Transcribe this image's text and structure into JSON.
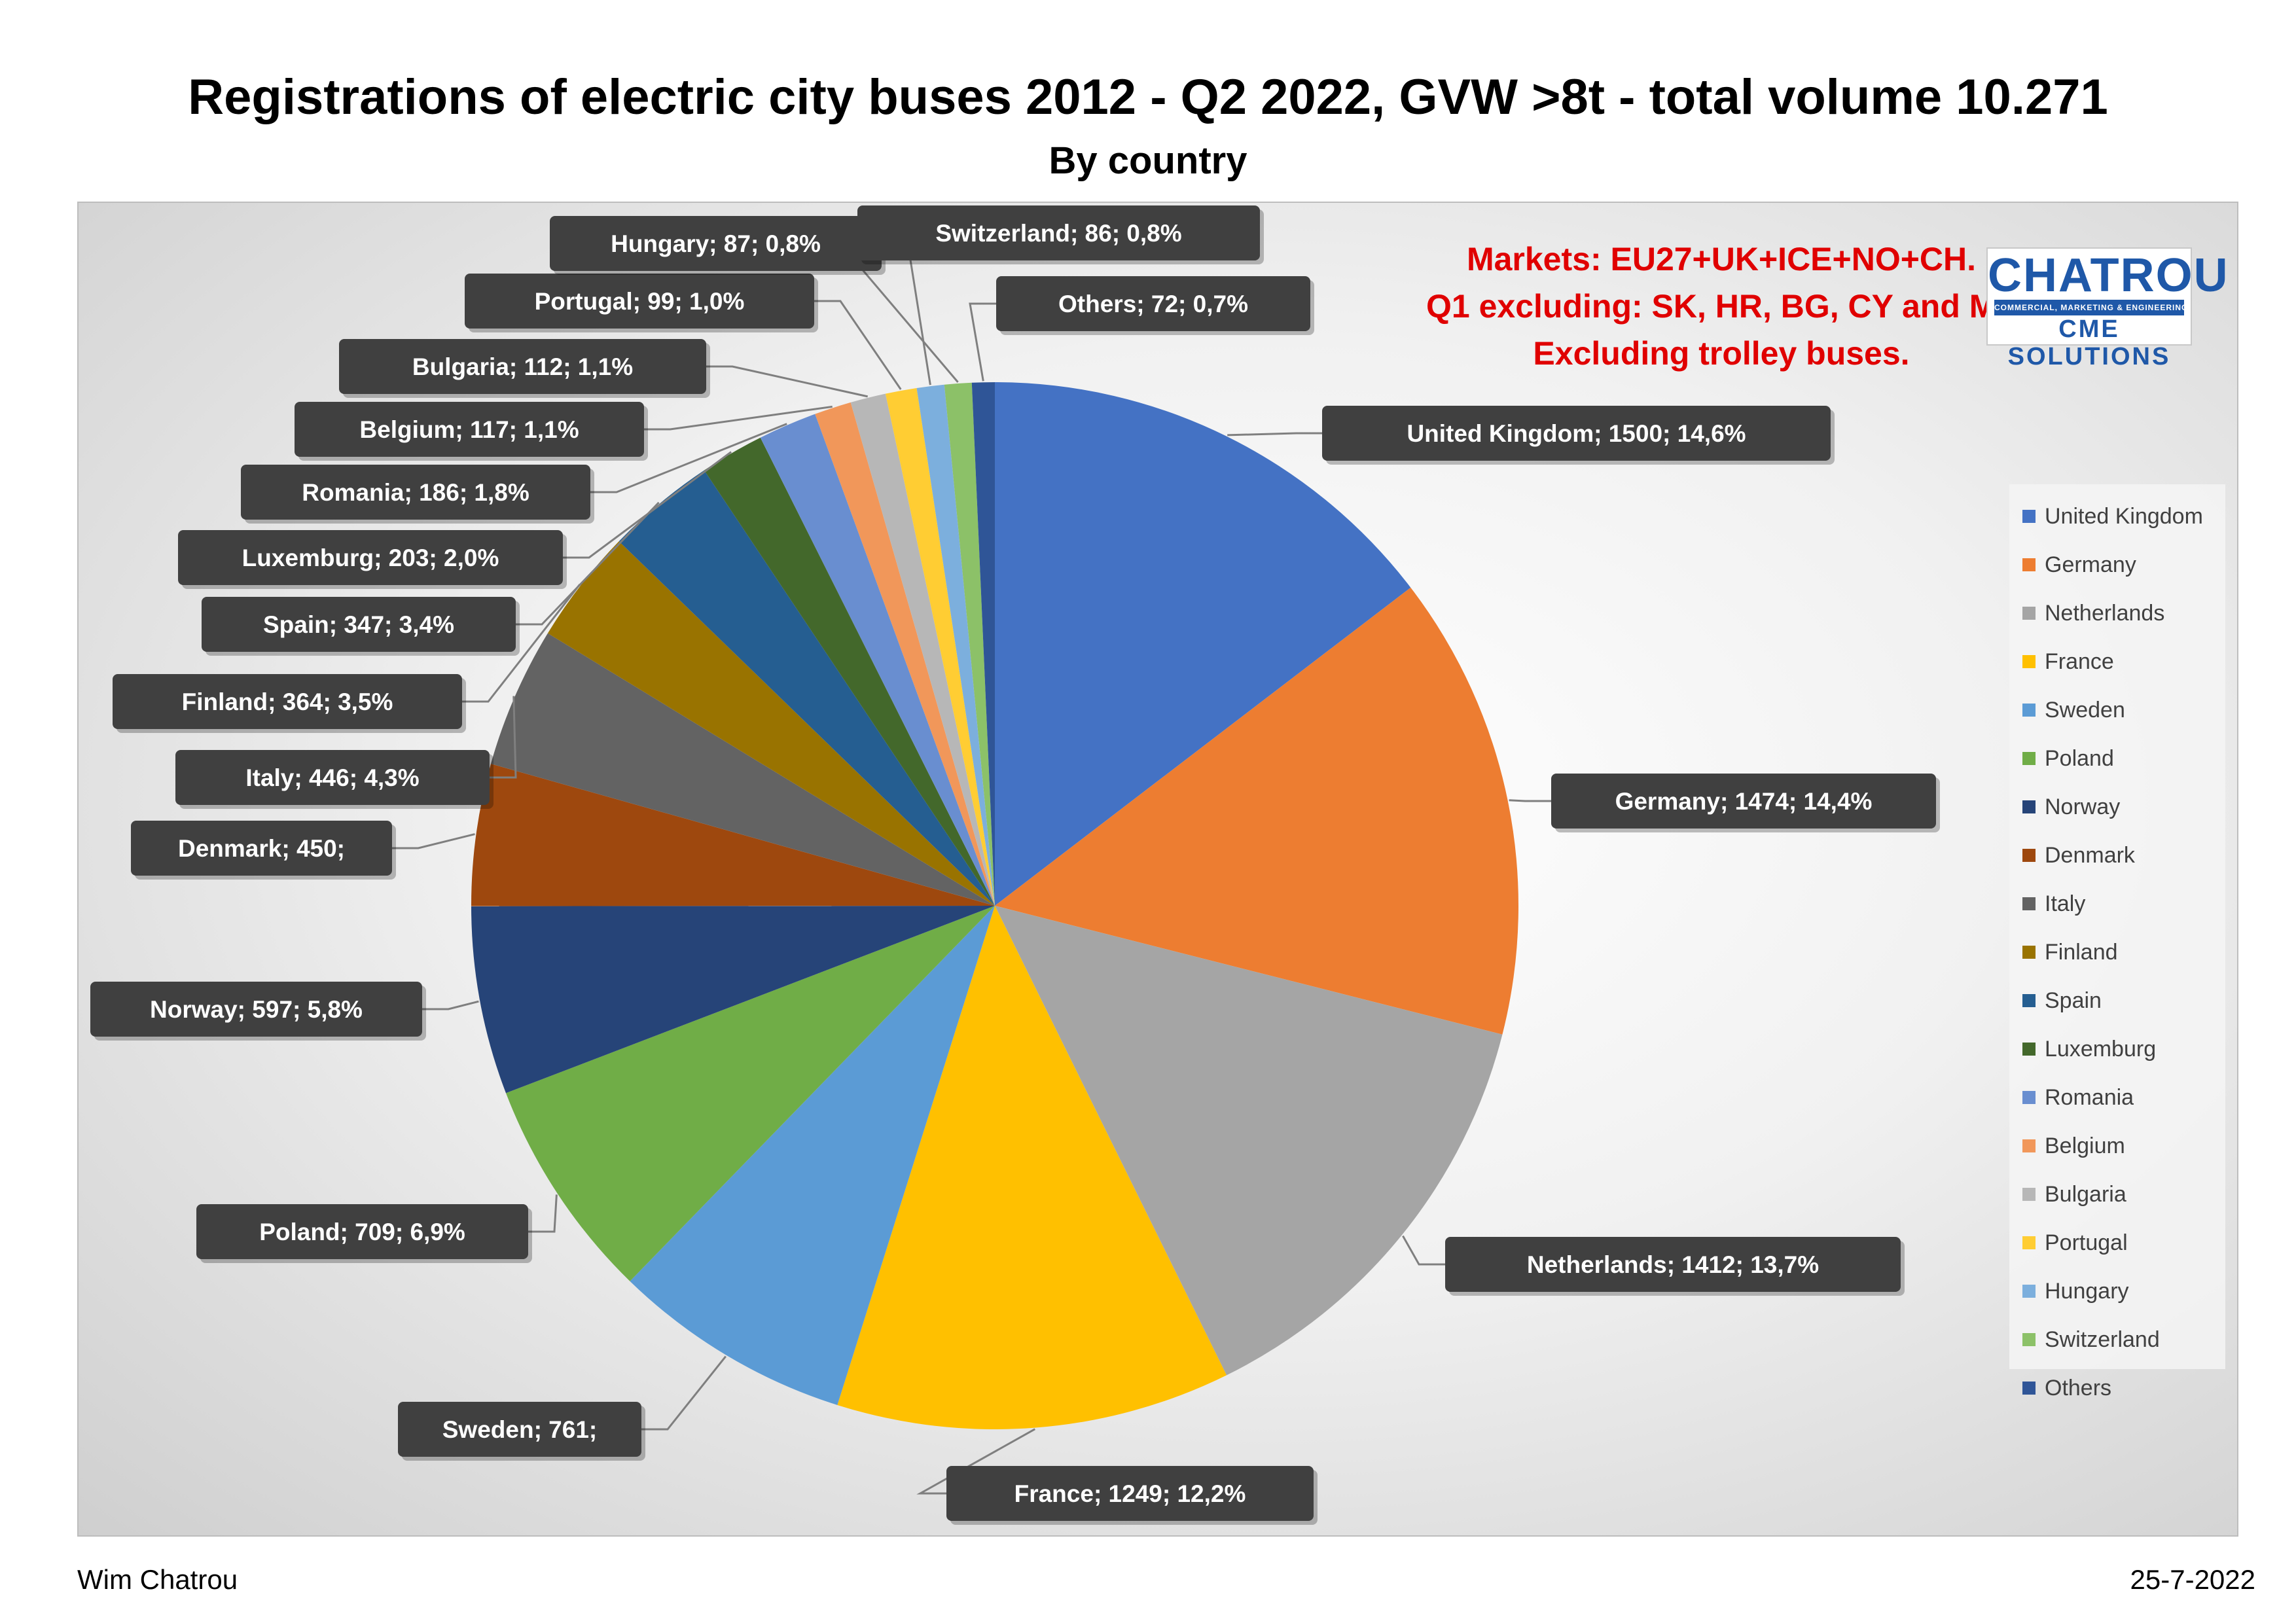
{
  "chart_data": {
    "type": "pie",
    "title": "Registrations of electric city buses 2012 - Q2 2022, GVW >8t - total volume 10.271",
    "subtitle": "By country",
    "slices": [
      {
        "label": "United Kingdom",
        "value": 1500,
        "data_label": "United Kingdom; 1500; 14,6%",
        "color": "#4472C4"
      },
      {
        "label": "Germany",
        "value": 1474,
        "data_label": "Germany; 1474; 14,4%",
        "color": "#ED7D31"
      },
      {
        "label": "Netherlands",
        "value": 1412,
        "data_label": "Netherlands; 1412; 13,7%",
        "color": "#A5A5A5"
      },
      {
        "label": "France",
        "value": 1249,
        "data_label": "France; 1249; 12,2%",
        "color": "#FFC000"
      },
      {
        "label": "Sweden",
        "value": 761,
        "data_label": "Sweden; 761;",
        "color": "#5B9BD5"
      },
      {
        "label": "Poland",
        "value": 709,
        "data_label": "Poland; 709; 6,9%",
        "color": "#70AD47"
      },
      {
        "label": "Norway",
        "value": 597,
        "data_label": "Norway; 597; 5,8%",
        "color": "#264478"
      },
      {
        "label": "Denmark",
        "value": 450,
        "data_label": "Denmark; 450;",
        "color": "#9E480E"
      },
      {
        "label": "Italy",
        "value": 446,
        "data_label": "Italy; 446; 4,3%",
        "color": "#636363"
      },
      {
        "label": "Finland",
        "value": 364,
        "data_label": "Finland; 364; 3,5%",
        "color": "#997300"
      },
      {
        "label": "Spain",
        "value": 347,
        "data_label": "Spain; 347; 3,4%",
        "color": "#255E91"
      },
      {
        "label": "Luxemburg",
        "value": 203,
        "data_label": "Luxemburg; 203; 2,0%",
        "color": "#43682B"
      },
      {
        "label": "Romania",
        "value": 186,
        "data_label": "Romania; 186; 1,8%",
        "color": "#698ED0"
      },
      {
        "label": "Belgium",
        "value": 117,
        "data_label": "Belgium; 117; 1,1%",
        "color": "#F1975A"
      },
      {
        "label": "Bulgaria",
        "value": 112,
        "data_label": "Bulgaria; 112; 1,1%",
        "color": "#B7B7B7"
      },
      {
        "label": "Portugal",
        "value": 99,
        "data_label": "Portugal; 99; 1,0%",
        "color": "#FFCD33"
      },
      {
        "label": "Hungary",
        "value": 87,
        "data_label": "Hungary; 87; 0,8%",
        "color": "#7CAFDD"
      },
      {
        "label": "Switzerland",
        "value": 86,
        "data_label": "Switzerland; 86; 0,8%",
        "color": "#8CC168"
      },
      {
        "label": "Others",
        "value": 72,
        "data_label": "Others; 72; 0,7%",
        "color": "#2F5597"
      }
    ],
    "legend_position": "right"
  },
  "note_lines": [
    "Markets: EU27+UK+ICE+NO+CH.",
    "Q1 excluding: SK, HR, BG, CY and MT",
    "Excluding trolley buses."
  ],
  "logo": {
    "main": "CHATROU",
    "bar": "COMMERCIAL, MARKETING & ENGINEERING",
    "sub": "CME SOLUTIONS"
  },
  "footer": {
    "author": "Wim Chatrou",
    "date": "25-7-2022"
  }
}
